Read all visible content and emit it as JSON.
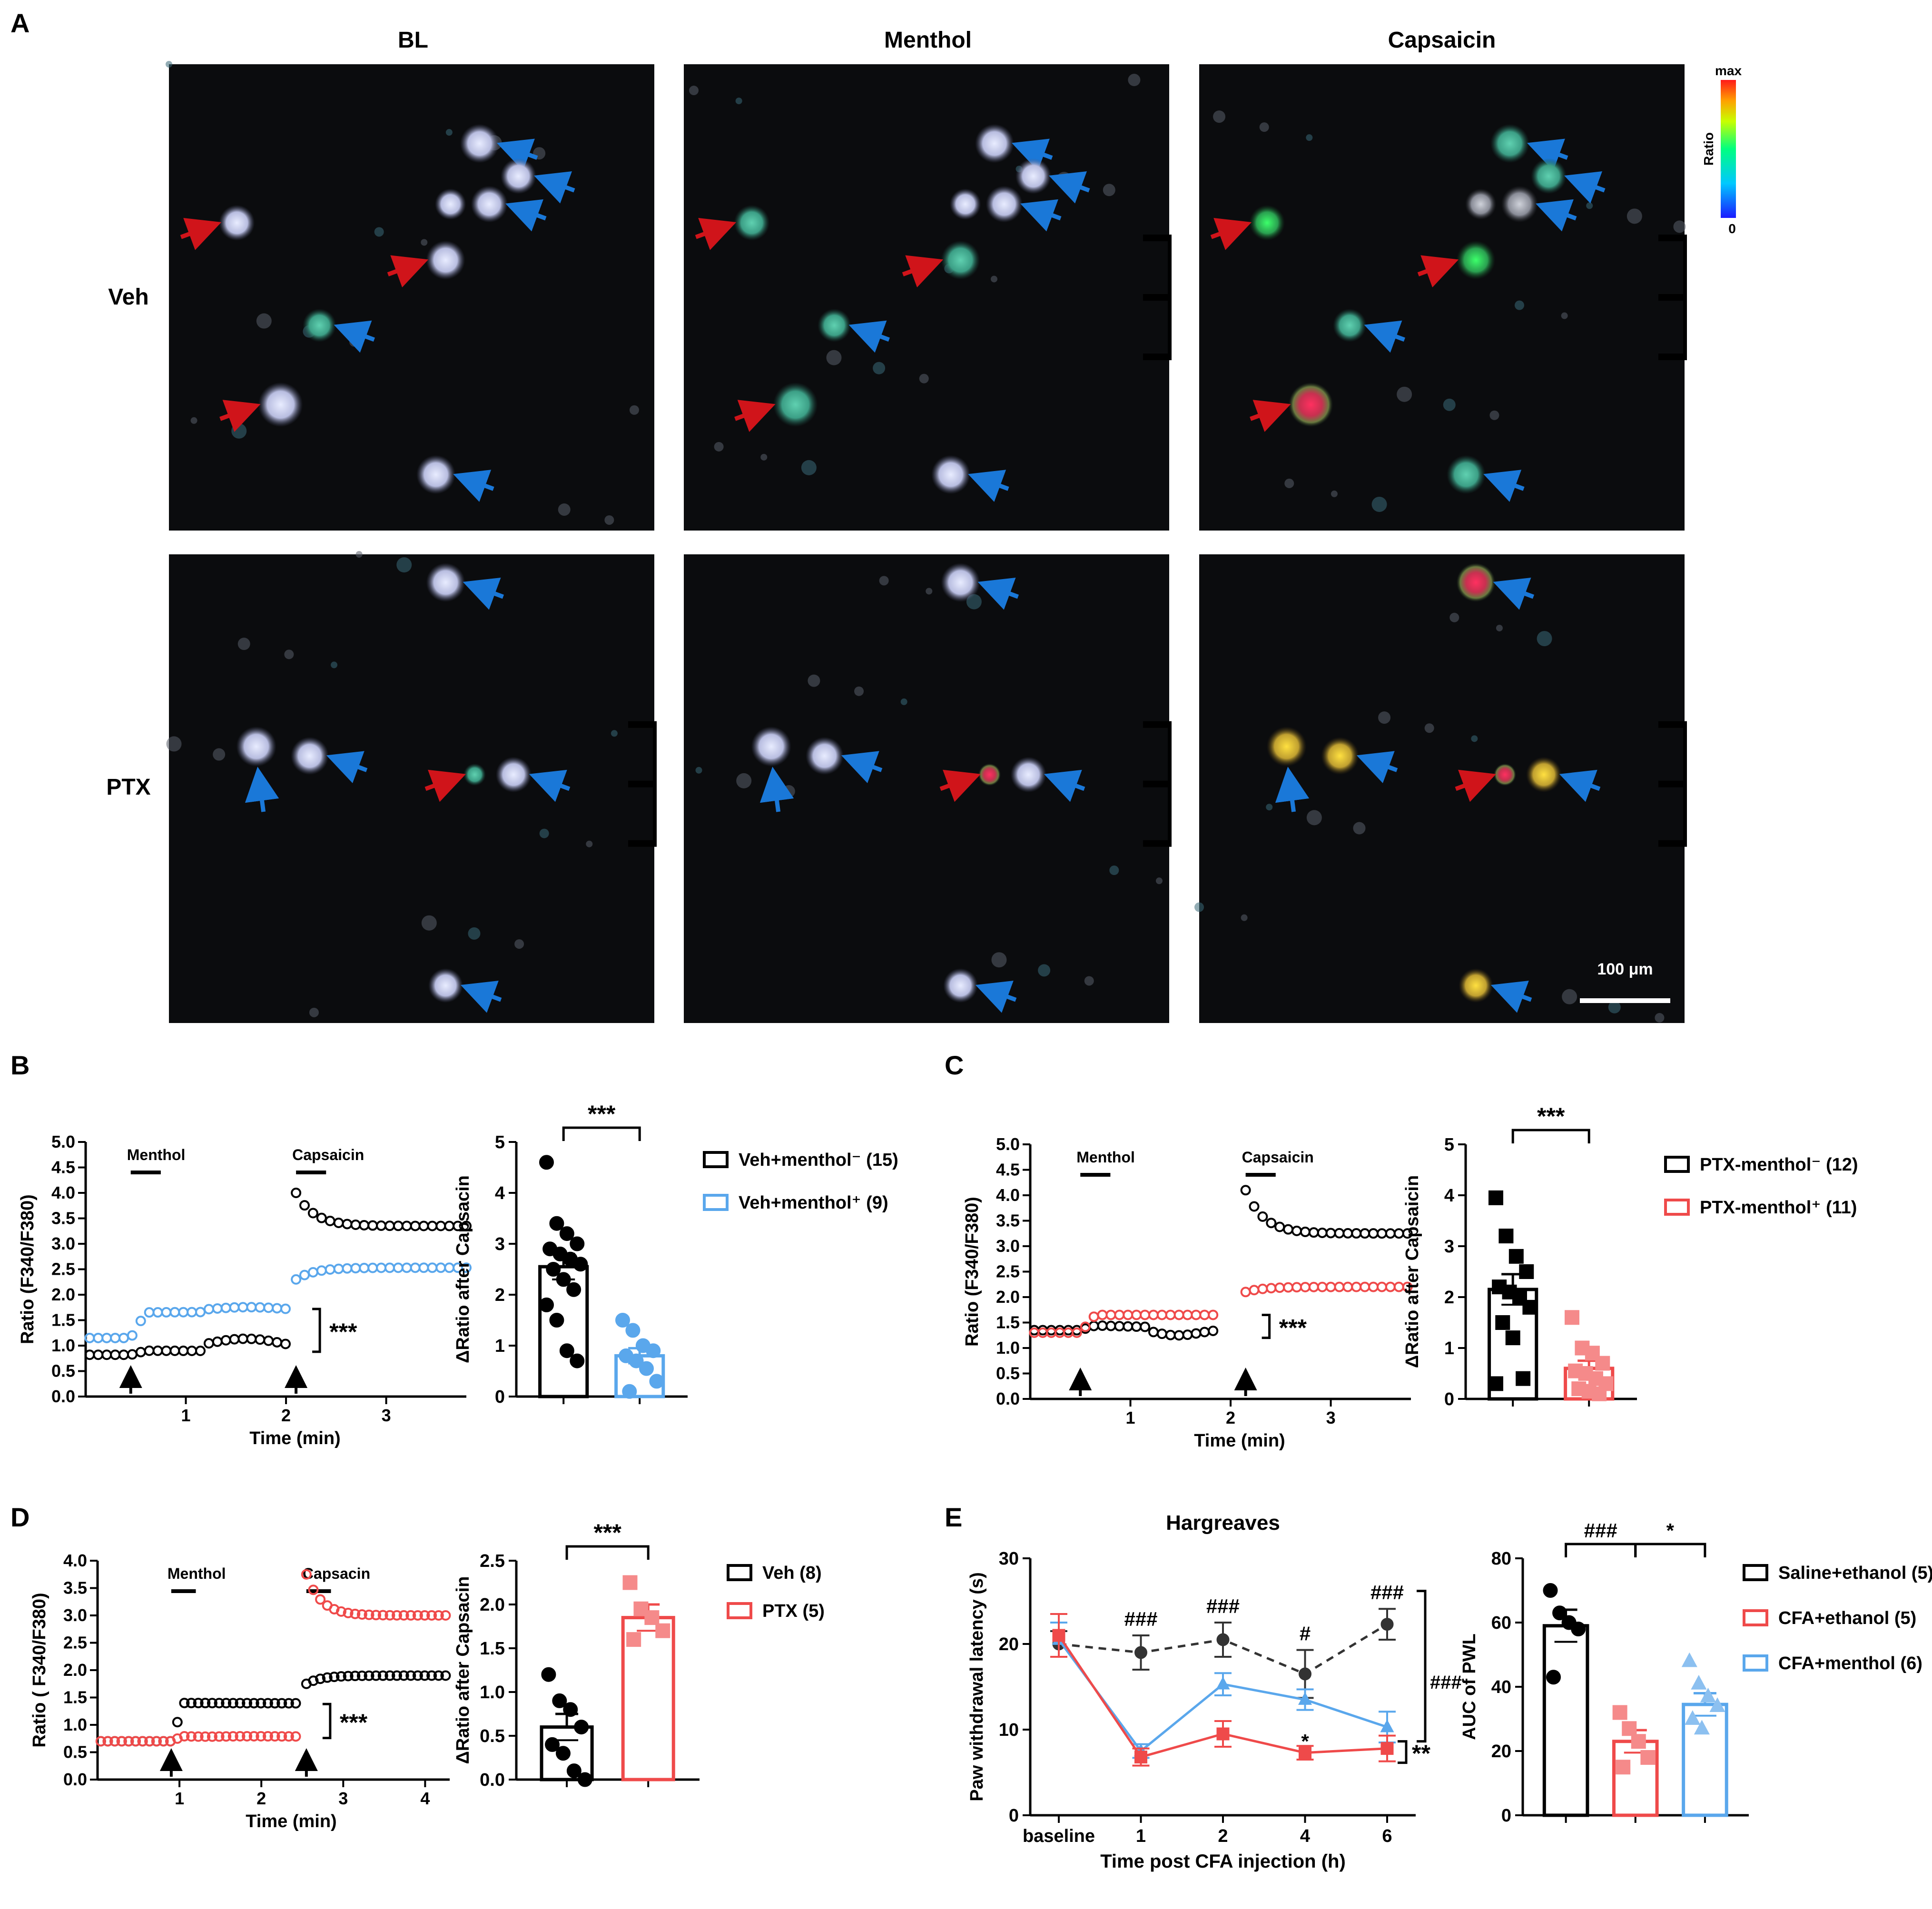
{
  "panels": {
    "A": {
      "letter": "A",
      "columns": [
        "BL",
        "Menthol",
        "Capsaicin"
      ],
      "rows": [
        "Veh",
        "PTX"
      ],
      "colorbar": {
        "max": "max",
        "min": "0",
        "label": "Ratio"
      },
      "scalebar": "100 μm"
    },
    "B": {
      "letter": "B"
    },
    "C": {
      "letter": "C"
    },
    "D": {
      "letter": "D"
    },
    "E": {
      "letter": "E"
    }
  },
  "chart_data": [
    {
      "id": "B-trace",
      "type": "line",
      "panel": "B",
      "ylabel": "Ratio (F340/F380)",
      "xlabel": "Time (min)",
      "xlim": [
        0,
        3.8
      ],
      "ylim": [
        0,
        5
      ],
      "xticks": [
        1,
        2,
        3
      ],
      "yticks": [
        "0.0",
        "0.5",
        "1.0",
        "1.5",
        "2.0",
        "2.5",
        "3.0",
        "3.5",
        "4.0",
        "4.5",
        "5.0"
      ],
      "stimuli": [
        {
          "label": "Menthol",
          "start": 0.45,
          "end": 0.75
        },
        {
          "label": "Capsaicin",
          "start": 2.1,
          "end": 2.4
        }
      ],
      "arrows_at": [
        0.45,
        2.1
      ],
      "significance": "***",
      "series": [
        {
          "color": "#000000",
          "phase1": [
            0.0,
            0.45,
            0.82,
            0.9,
            1.2,
            1.3,
            1.6,
            2.0,
            0.88
          ],
          "phase2": [
            2.1,
            3.8,
            4.0,
            3.35
          ]
        },
        {
          "color": "#5aa7ec",
          "phase1": [
            0.0,
            0.45,
            1.15,
            1.65,
            1.2,
            1.8,
            1.6,
            2.0,
            1.72
          ],
          "phase2": [
            2.1,
            3.8,
            2.3,
            2.53
          ]
        }
      ]
    },
    {
      "id": "B-bar",
      "type": "bar",
      "panel": "B",
      "ylabel": "ΔRatio after Capsacin",
      "ylim": [
        0,
        5
      ],
      "yticks": [
        "0",
        "1",
        "2",
        "3",
        "4",
        "5"
      ],
      "significance": "***",
      "legend": [
        {
          "label": "Veh+menthol⁻ (15)",
          "color": "#000000"
        },
        {
          "label": "Veh+menthol⁺ (9)",
          "color": "#5aa7ec"
        }
      ],
      "groups": [
        {
          "mean": 2.55,
          "sem": 0.25,
          "color": "#000000",
          "fill": "#000000",
          "marker": "circle",
          "points": [
            4.6,
            3.4,
            3.2,
            3.0,
            2.9,
            2.8,
            2.7,
            2.6,
            2.5,
            2.3,
            2.1,
            1.8,
            1.5,
            0.9,
            0.7
          ]
        },
        {
          "mean": 0.8,
          "sem": 0.15,
          "color": "#5aa7ec",
          "fill": "#5aa7ec",
          "marker": "circle",
          "points": [
            1.5,
            1.3,
            1.0,
            0.9,
            0.8,
            0.7,
            0.55,
            0.3,
            0.1
          ]
        }
      ]
    },
    {
      "id": "C-trace",
      "type": "line",
      "panel": "C",
      "ylabel": "Ratio (F340/F380)",
      "xlabel": "Time (min)",
      "xlim": [
        0,
        3.8
      ],
      "ylim": [
        0,
        5
      ],
      "xticks": [
        1,
        2,
        3
      ],
      "yticks": [
        "0.0",
        "0.5",
        "1.0",
        "1.5",
        "2.0",
        "2.5",
        "3.0",
        "3.5",
        "4.0",
        "4.5",
        "5.0"
      ],
      "stimuli": [
        {
          "label": "Menthol",
          "start": 0.5,
          "end": 0.8
        },
        {
          "label": "Capsaicin",
          "start": 2.15,
          "end": 2.45
        }
      ],
      "arrows_at": [
        0.5,
        2.15
      ],
      "significance": "***",
      "series": [
        {
          "color": "#000000",
          "phase1": [
            0.0,
            0.5,
            1.35,
            1.45,
            1.2,
            1.2,
            1.0,
            1.9,
            1.2
          ],
          "phase2": [
            2.15,
            3.8,
            4.1,
            3.25
          ]
        },
        {
          "color": "#ef4a4a",
          "phase1": [
            0.0,
            0.5,
            1.3,
            1.65,
            1.3,
            1.65,
            1.0,
            1.9,
            1.65
          ],
          "phase2": [
            2.15,
            3.8,
            2.1,
            2.2
          ]
        }
      ]
    },
    {
      "id": "C-bar",
      "type": "bar",
      "panel": "C",
      "ylabel": "ΔRatio after Capsaicin",
      "ylim": [
        0,
        5
      ],
      "yticks": [
        "0",
        "1",
        "2",
        "3",
        "4",
        "5"
      ],
      "significance": "***",
      "legend": [
        {
          "label": "PTX-menthol⁻ (12)",
          "color": "#000000"
        },
        {
          "label": "PTX-menthol⁺ (11)",
          "color": "#ef4a4a"
        }
      ],
      "groups": [
        {
          "mean": 2.15,
          "sem": 0.3,
          "color": "#000000",
          "fill": "#000000",
          "marker": "square",
          "points": [
            3.95,
            3.2,
            2.8,
            2.5,
            2.2,
            2.1,
            2.0,
            1.8,
            1.5,
            1.2,
            0.4,
            0.3
          ]
        },
        {
          "mean": 0.6,
          "sem": 0.15,
          "color": "#ef4a4a",
          "fill": "#f58a8a",
          "marker": "square",
          "points": [
            1.6,
            1.0,
            0.9,
            0.7,
            0.55,
            0.5,
            0.4,
            0.3,
            0.2,
            0.15,
            0.1
          ]
        }
      ]
    },
    {
      "id": "D-trace",
      "type": "line",
      "panel": "D",
      "ylabel": "Ratio ( F340/F380)",
      "xlabel": "Time (min)",
      "xlim": [
        0,
        4.3
      ],
      "ylim": [
        0,
        4
      ],
      "xticks": [
        1,
        2,
        3,
        4
      ],
      "yticks": [
        "0.0",
        "0.5",
        "1.0",
        "1.5",
        "2.0",
        "2.5",
        "3.0",
        "3.5",
        "4.0"
      ],
      "stimuli": [
        {
          "label": "Menthol",
          "start": 0.9,
          "end": 1.2
        },
        {
          "label": "Capsacin",
          "start": 2.55,
          "end": 2.85
        }
      ],
      "arrows_at": [
        0.9,
        2.55
      ],
      "significance": "***",
      "series": [
        {
          "color": "#000000",
          "phase1": [
            0.0,
            0.9,
            0.7,
            1.4,
            1.55,
            1.4,
            1.0,
            2.45,
            1.38
          ],
          "phase2": [
            2.55,
            4.3,
            1.75,
            1.9
          ]
        },
        {
          "color": "#ef4a4a",
          "phase1": [
            0.0,
            0.9,
            0.7,
            0.8,
            1.05,
            0.78,
            1.0,
            2.45,
            0.76
          ],
          "phase2": [
            2.55,
            4.3,
            3.75,
            3.0
          ]
        }
      ]
    },
    {
      "id": "D-bar",
      "type": "bar",
      "panel": "D",
      "ylabel": "ΔRatio after Capsacin",
      "ylim": [
        0,
        2.5
      ],
      "yticks": [
        "0.0",
        "0.5",
        "1.0",
        "1.5",
        "2.0",
        "2.5"
      ],
      "significance": "***",
      "legend": [
        {
          "label": "Veh (8)",
          "color": "#000000"
        },
        {
          "label": "PTX (5)",
          "color": "#ef4a4a"
        }
      ],
      "groups": [
        {
          "mean": 0.6,
          "sem": 0.15,
          "color": "#000000",
          "fill": "#000000",
          "marker": "circle",
          "points": [
            1.2,
            0.9,
            0.8,
            0.6,
            0.4,
            0.3,
            0.1,
            0.0
          ]
        },
        {
          "mean": 1.85,
          "sem": 0.15,
          "color": "#ef4a4a",
          "fill": "#f58a8a",
          "marker": "square",
          "points": [
            2.25,
            1.95,
            1.85,
            1.7,
            1.6
          ]
        }
      ]
    },
    {
      "id": "E-line",
      "type": "line",
      "panel": "E",
      "title": "Hargreaves",
      "ylabel": "Paw withdrawal latency (s)",
      "xlabel": "Time post CFA injection (h)",
      "categories": [
        "baseline",
        "1",
        "2",
        "4",
        "6"
      ],
      "ylim": [
        0,
        30
      ],
      "yticks": [
        "0",
        "10",
        "20",
        "30"
      ],
      "annotations": [
        {
          "x": "1",
          "text": "###"
        },
        {
          "x": "2",
          "text": "###"
        },
        {
          "x": "4",
          "text": "#"
        },
        {
          "x": "6",
          "text": "###"
        },
        {
          "x": "4",
          "text": "*",
          "y": 9.5
        }
      ],
      "brackets": [
        "###",
        "**"
      ],
      "series": [
        {
          "color": "#333333",
          "dashed": true,
          "marker": "circle",
          "values": [
            20.0,
            19.0,
            20.5,
            16.5,
            22.3
          ],
          "sem": [
            1.5,
            2.0,
            2.0,
            2.8,
            1.8
          ]
        },
        {
          "color": "#5aa7ec",
          "dashed": false,
          "marker": "triangle",
          "values": [
            20.5,
            7.5,
            15.3,
            13.5,
            10.3
          ],
          "sem": [
            2.0,
            0.8,
            1.3,
            1.2,
            1.8
          ]
        },
        {
          "color": "#ef4a4a",
          "dashed": false,
          "marker": "square",
          "values": [
            21.0,
            6.8,
            9.5,
            7.3,
            7.8
          ],
          "sem": [
            2.5,
            1.0,
            1.5,
            0.8,
            1.5
          ]
        }
      ]
    },
    {
      "id": "E-bar",
      "type": "bar",
      "panel": "E",
      "ylabel": "AUC of PWL",
      "ylim": [
        0,
        80
      ],
      "yticks": [
        "0",
        "20",
        "40",
        "60",
        "80"
      ],
      "significance": [
        "###",
        "*"
      ],
      "legend": [
        {
          "label": "Saline+ethanol (5)",
          "color": "#000000"
        },
        {
          "label": "CFA+ethanol (5)",
          "color": "#ef4a4a"
        },
        {
          "label": "CFA+menthol (6)",
          "color": "#5aa7ec"
        }
      ],
      "groups": [
        {
          "mean": 59,
          "sem": 5,
          "color": "#000000",
          "fill": "#000000",
          "marker": "circle",
          "points": [
            70,
            63,
            60,
            58,
            43
          ]
        },
        {
          "mean": 23,
          "sem": 3.5,
          "color": "#ef4a4a",
          "fill": "#f58a8a",
          "marker": "square",
          "points": [
            32,
            27,
            23,
            18,
            15
          ]
        },
        {
          "mean": 34.5,
          "sem": 3.5,
          "color": "#5aa7ec",
          "fill": "#8cc0f0",
          "marker": "triangle",
          "points": [
            48,
            41,
            37,
            34,
            30,
            27
          ]
        }
      ]
    }
  ]
}
